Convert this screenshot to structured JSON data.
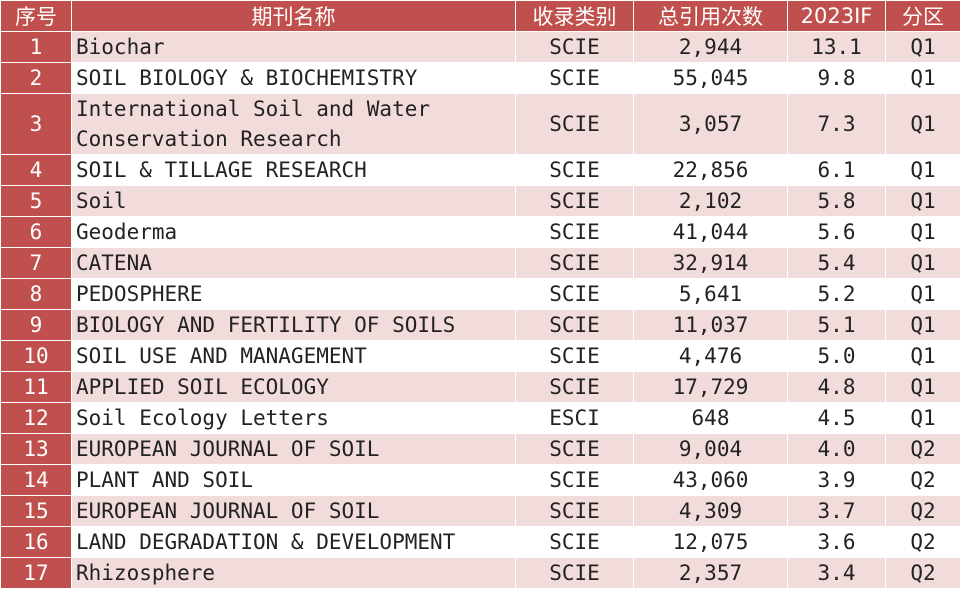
{
  "headers": [
    "序号",
    "期刊名称",
    "收录类别",
    "总引用次数",
    "2023IF",
    "分区"
  ],
  "rows": [
    {
      "idx": "1",
      "name": "Biochar",
      "category": "SCIE",
      "citations": "2,944",
      "if": "13.1",
      "quartile": "Q1"
    },
    {
      "idx": "2",
      "name": "SOIL BIOLOGY & BIOCHEMISTRY",
      "category": "SCIE",
      "citations": "55,045",
      "if": "9.8",
      "quartile": "Q1"
    },
    {
      "idx": "3",
      "name": "International Soil and Water Conservation Research",
      "category": "SCIE",
      "citations": "3,057",
      "if": "7.3",
      "quartile": "Q1"
    },
    {
      "idx": "4",
      "name": "SOIL & TILLAGE RESEARCH",
      "category": "SCIE",
      "citations": "22,856",
      "if": "6.1",
      "quartile": "Q1"
    },
    {
      "idx": "5",
      "name": "Soil",
      "category": "SCIE",
      "citations": "2,102",
      "if": "5.8",
      "quartile": "Q1"
    },
    {
      "idx": "6",
      "name": "Geoderma",
      "category": "SCIE",
      "citations": "41,044",
      "if": "5.6",
      "quartile": "Q1"
    },
    {
      "idx": "7",
      "name": "CATENA",
      "category": "SCIE",
      "citations": "32,914",
      "if": "5.4",
      "quartile": "Q1"
    },
    {
      "idx": "8",
      "name": "PEDOSPHERE",
      "category": "SCIE",
      "citations": "5,641",
      "if": "5.2",
      "quartile": "Q1"
    },
    {
      "idx": "9",
      "name": "BIOLOGY AND FERTILITY OF SOILS",
      "category": "SCIE",
      "citations": "11,037",
      "if": "5.1",
      "quartile": "Q1"
    },
    {
      "idx": "10",
      "name": "SOIL USE AND MANAGEMENT",
      "category": "SCIE",
      "citations": "4,476",
      "if": "5.0",
      "quartile": "Q1"
    },
    {
      "idx": "11",
      "name": "APPLIED SOIL ECOLOGY",
      "category": "SCIE",
      "citations": "17,729",
      "if": "4.8",
      "quartile": "Q1"
    },
    {
      "idx": "12",
      "name": "Soil Ecology Letters",
      "category": "ESCI",
      "citations": "648",
      "if": "4.5",
      "quartile": "Q1"
    },
    {
      "idx": "13",
      "name": "EUROPEAN JOURNAL OF SOIL",
      "category": "SCIE",
      "citations": "9,004",
      "if": "4.0",
      "quartile": "Q2"
    },
    {
      "idx": "14",
      "name": "PLANT AND SOIL",
      "category": "SCIE",
      "citations": "43,060",
      "if": "3.9",
      "quartile": "Q2"
    },
    {
      "idx": "15",
      "name": "EUROPEAN JOURNAL OF SOIL",
      "category": "SCIE",
      "citations": "4,309",
      "if": "3.7",
      "quartile": "Q2"
    },
    {
      "idx": "16",
      "name": "LAND DEGRADATION & DEVELOPMENT",
      "category": "SCIE",
      "citations": "12,075",
      "if": "3.6",
      "quartile": "Q2"
    },
    {
      "idx": "17",
      "name": "Rhizosphere",
      "category": "SCIE",
      "citations": "2,357",
      "if": "3.4",
      "quartile": "Q2"
    }
  ]
}
